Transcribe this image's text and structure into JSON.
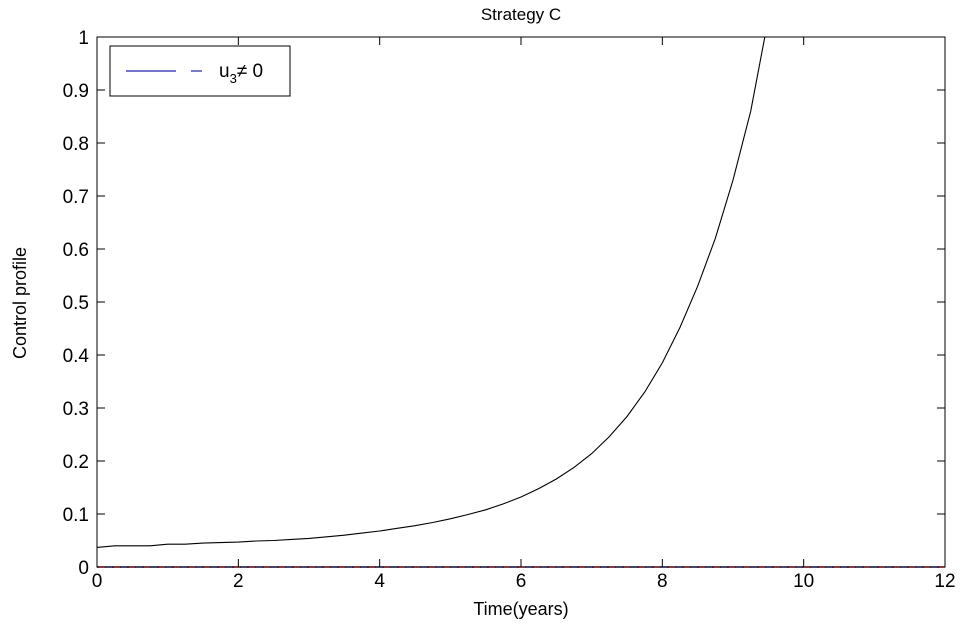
{
  "chart_data": {
    "type": "line",
    "title": "Strategy C",
    "xlabel": "Time(years)",
    "ylabel": "Control profile",
    "xlim": [
      0,
      12
    ],
    "ylim": [
      0,
      1
    ],
    "xticks": [
      0,
      2,
      4,
      6,
      8,
      10,
      12
    ],
    "yticks": [
      0,
      0.1,
      0.2,
      0.3,
      0.4,
      0.5,
      0.6,
      0.7,
      0.8,
      0.9,
      1
    ],
    "grid": false,
    "legend": {
      "placement": "top-left",
      "label_main": "u",
      "label_sub": "3",
      "label_rest": "≠ 0"
    },
    "series": [
      {
        "name": "u3≠ 0",
        "color": "#000000",
        "style": "solid",
        "x": [
          0,
          0.25,
          0.5,
          0.75,
          1,
          1.25,
          1.5,
          1.75,
          2,
          2.25,
          2.5,
          2.75,
          3,
          3.25,
          3.5,
          3.75,
          4,
          4.25,
          4.5,
          4.75,
          5,
          5.25,
          5.5,
          5.75,
          6,
          6.25,
          6.5,
          6.75,
          7,
          7.25,
          7.5,
          7.75,
          8,
          8.25,
          8.5,
          8.75,
          9,
          9.25,
          9.45,
          12
        ],
        "y": [
          0.037,
          0.04,
          0.04,
          0.04,
          0.043,
          0.043,
          0.045,
          0.046,
          0.047,
          0.049,
          0.05,
          0.052,
          0.054,
          0.057,
          0.06,
          0.064,
          0.068,
          0.073,
          0.078,
          0.084,
          0.091,
          0.099,
          0.108,
          0.119,
          0.132,
          0.148,
          0.166,
          0.188,
          0.214,
          0.246,
          0.284,
          0.33,
          0.385,
          0.452,
          0.53,
          0.62,
          0.73,
          0.86,
          1.0,
          1.0
        ]
      },
      {
        "name": "",
        "color": "#ff0000",
        "style": "dashed",
        "x": [
          0,
          12
        ],
        "y": [
          0,
          0
        ]
      },
      {
        "name": "",
        "color": "#2222aa",
        "style": "dashed",
        "x": [
          0,
          12
        ],
        "y": [
          0,
          0
        ]
      }
    ]
  },
  "legend_colors": {
    "solid": "#2222aa",
    "dash": "#2222aa"
  }
}
